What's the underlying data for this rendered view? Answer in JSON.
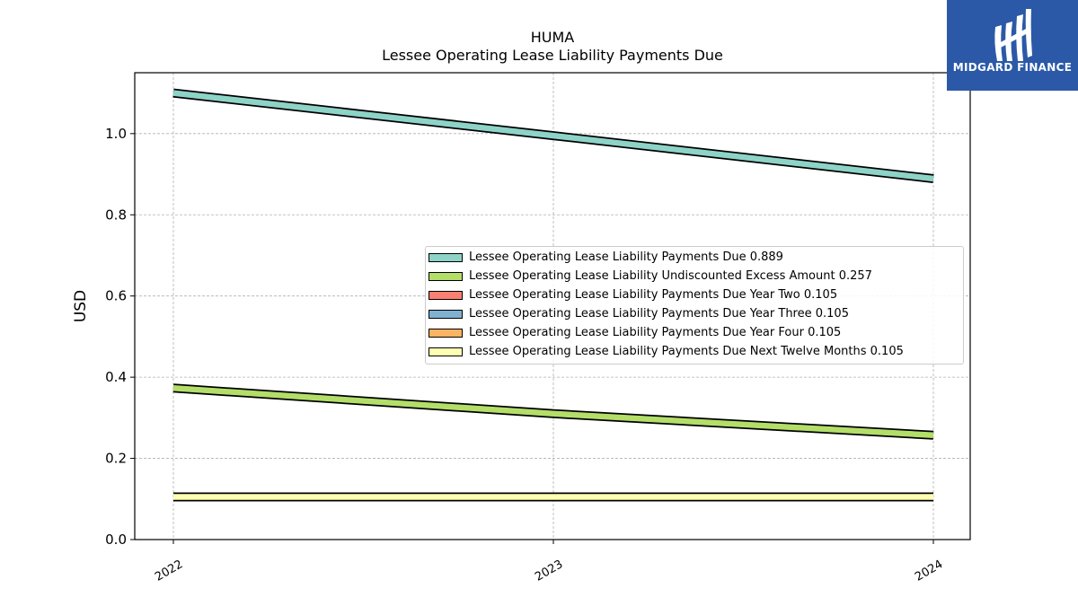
{
  "header": {
    "title": "HUMA",
    "subtitle": "Lessee Operating Lease Liability Payments Due"
  },
  "logo": {
    "text": "MIDGARD FINANCE",
    "background": "#2b59a8",
    "icon": "midgard-logo-icon"
  },
  "chart_data": {
    "type": "line",
    "title": "HUMA",
    "subtitle": "Lessee Operating Lease Liability Payments Due",
    "xlabel": "",
    "ylabel": "USD",
    "categories": [
      "2022",
      "2023",
      "2024"
    ],
    "ylim": [
      0,
      1.15
    ],
    "yticks": [
      "0.0",
      "0.2",
      "0.4",
      "0.6",
      "0.8",
      "1.0"
    ],
    "grid": true,
    "legend_position": "center-right",
    "series": [
      {
        "name": "Lessee Operating Lease Liability Payments Due",
        "legend": "Lessee Operating Lease Liability Payments Due  0.889",
        "values": [
          1.1,
          0.995,
          0.889
        ],
        "color": "#8dd3c7"
      },
      {
        "name": "Lessee Operating Lease Liability Undiscounted Excess Amount",
        "legend": "Lessee Operating Lease Liability Undiscounted Excess Amount  0.257",
        "values": [
          0.373,
          0.31,
          0.257
        ],
        "color": "#b3de69"
      },
      {
        "name": "Lessee Operating Lease Liability Payments Due Year Two",
        "legend": "Lessee Operating Lease Liability Payments Due Year Two  0.105",
        "values": [
          0.105,
          0.105,
          0.105
        ],
        "color": "#fb8072"
      },
      {
        "name": "Lessee Operating Lease Liability Payments Due Year Three",
        "legend": "Lessee Operating Lease Liability Payments Due Year Three  0.105",
        "values": [
          0.105,
          0.105,
          0.105
        ],
        "color": "#80b1d3"
      },
      {
        "name": "Lessee Operating Lease Liability Payments Due Year Four",
        "legend": "Lessee Operating Lease Liability Payments Due Year Four  0.105",
        "values": [
          0.105,
          0.105,
          0.105
        ],
        "color": "#fdb462"
      },
      {
        "name": "Lessee Operating Lease Liability Payments Due Next Twelve Months",
        "legend": "Lessee Operating Lease Liability Payments Due Next Twelve Months  0.105",
        "values": [
          0.105,
          0.105,
          0.105
        ],
        "color": "#ffffb3"
      }
    ]
  }
}
